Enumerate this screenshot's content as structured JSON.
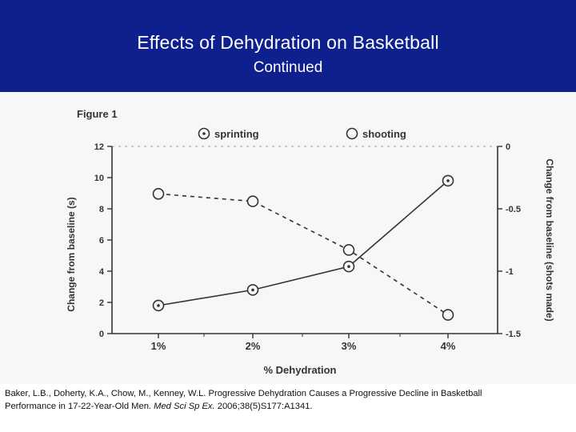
{
  "header": {
    "title": "Effects of Dehydration on Basketball",
    "subtitle": "Continued"
  },
  "colors": {
    "header_bg": "#0e1f8e",
    "ink": "#333333"
  },
  "chart_data": {
    "type": "line",
    "figure_label": "Figure 1",
    "xlabel": "% Dehydration",
    "ylabel_left": "Change from baseline (s)",
    "ylabel_right": "Change from baseline (shots made)",
    "categories": [
      "1%",
      "2%",
      "3%",
      "4%"
    ],
    "y_left": {
      "lim": [
        0,
        12
      ],
      "ticks": [
        "0",
        "2",
        "4",
        "6",
        "8",
        "10",
        "12"
      ]
    },
    "y_right": {
      "lim": [
        -1.5,
        0
      ],
      "ticks": [
        "0",
        "-0.5",
        "-1",
        "-1.5"
      ]
    },
    "grid": false,
    "legend_position": "top",
    "series": [
      {
        "name": "sprinting",
        "axis": "left",
        "line_style": "solid",
        "values": [
          1.8,
          2.8,
          4.3,
          9.8
        ]
      },
      {
        "name": "shooting",
        "axis": "right",
        "line_style": "dashed",
        "values": [
          -0.38,
          -0.44,
          -0.83,
          -1.35
        ]
      }
    ]
  },
  "citation": {
    "text_line1": "Baker, L.B., Doherty, K.A., Chow, M., Kenney, W.L. Progressive Dehydration Causes a Progressive Decline in Basketball",
    "text_line2_pre": "Performance in 17-22-Year-Old Men. ",
    "journal": "Med Sci Sp Ex.",
    "text_line2_post": " 2006;38(5)S177:A1341."
  }
}
